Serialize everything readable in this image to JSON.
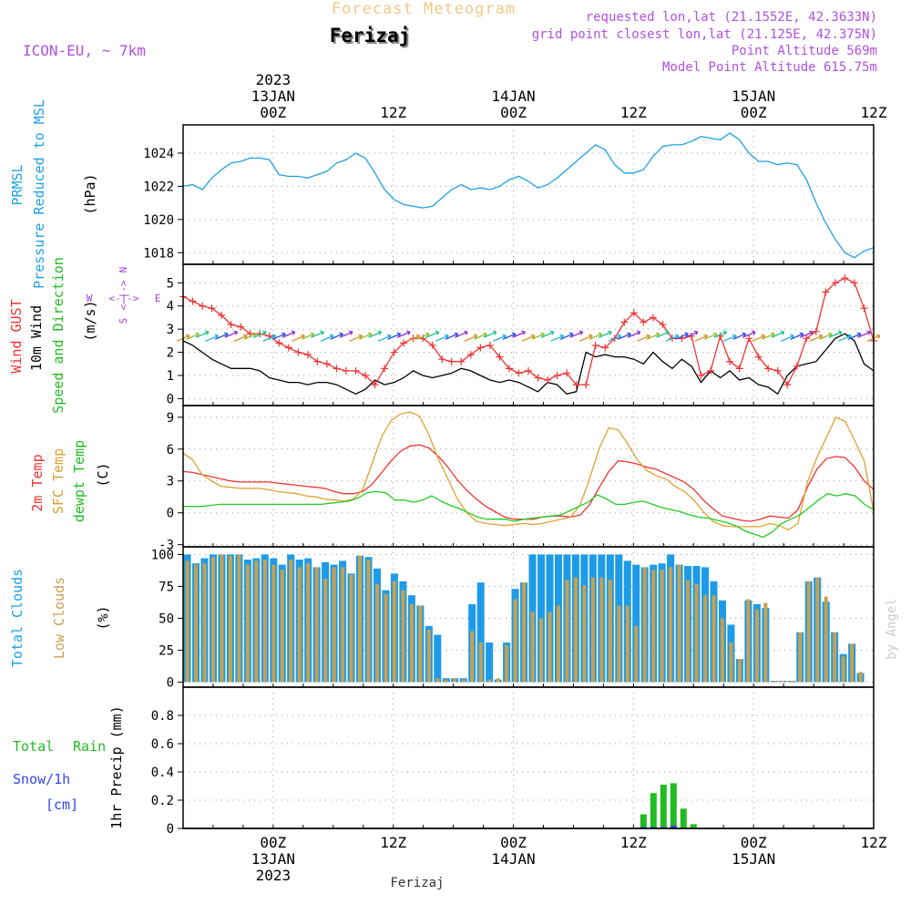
{
  "header": {
    "super_title": "Forecast Meteogram",
    "location": "Ferizaj",
    "model": "ICON-EU, ~ 7km",
    "requested": "requested lon,lat (21.1552E, 42.3633N)",
    "grid_point": "grid point closest lon,lat (21.125E, 42.375N)",
    "point_altitude": "Point Altitude 569m",
    "model_altitude": "Model Point Altitude 615.75m"
  },
  "footer": {
    "location": "Ferizaj",
    "watermark": "by Angel"
  },
  "colors": {
    "pressure": "#1ea0e6",
    "gust": "#ee3333",
    "wind": "#000000",
    "purple": "#a040d0",
    "sfc": "#e0a030",
    "dewpt": "#22cc22",
    "cloud_total": "#1e9be8",
    "cloud_low": "#c8a050",
    "rain": "#22bb22",
    "snow": "#3344ee",
    "title_orange": "#f0c070"
  },
  "chart_data": {
    "type": "meteogram",
    "time_axis": {
      "unit": "hours since 2023-01-12 15Z",
      "range": [
        0,
        69
      ],
      "top_labels": [
        {
          "t": 9,
          "lines": [
            "2023",
            "13JAN",
            "00Z"
          ]
        },
        {
          "t": 21,
          "lines": [
            "12Z"
          ]
        },
        {
          "t": 33,
          "lines": [
            "14JAN",
            "00Z"
          ]
        },
        {
          "t": 45,
          "lines": [
            "12Z"
          ]
        },
        {
          "t": 57,
          "lines": [
            "15JAN",
            "00Z"
          ]
        },
        {
          "t": 69,
          "lines": [
            "12Z"
          ]
        }
      ],
      "bottom_labels": [
        {
          "t": 9,
          "lines": [
            "00Z",
            "13JAN",
            "2023"
          ]
        },
        {
          "t": 21,
          "lines": [
            "12Z"
          ]
        },
        {
          "t": 33,
          "lines": [
            "00Z",
            "14JAN"
          ]
        },
        {
          "t": 45,
          "lines": [
            "12Z"
          ]
        },
        {
          "t": 57,
          "lines": [
            "00Z",
            "15JAN"
          ]
        },
        {
          "t": 69,
          "lines": [
            "12Z"
          ]
        }
      ]
    },
    "pressure": {
      "title": "PRMSL",
      "subtitle": "Pressure Reduced to MSL",
      "unit": "(hPa)",
      "ylim": [
        1017.3,
        1025.7
      ],
      "yticks": [
        1018,
        1020,
        1022,
        1024
      ],
      "values": [
        1022.0,
        1022.1,
        1021.8,
        1022.5,
        1023.0,
        1023.4,
        1023.5,
        1023.7,
        1023.7,
        1023.6,
        1022.7,
        1022.6,
        1022.6,
        1022.5,
        1022.7,
        1022.9,
        1023.4,
        1023.6,
        1024.0,
        1023.7,
        1022.8,
        1021.8,
        1021.2,
        1020.9,
        1020.8,
        1020.7,
        1020.8,
        1021.3,
        1021.8,
        1022.1,
        1021.8,
        1021.9,
        1021.8,
        1022.0,
        1022.4,
        1022.6,
        1022.3,
        1021.9,
        1022.1,
        1022.5,
        1023.0,
        1023.5,
        1024.0,
        1024.5,
        1024.2,
        1023.3,
        1022.8,
        1022.8,
        1023.0,
        1023.8,
        1024.4,
        1024.5,
        1024.5,
        1024.7,
        1025.0,
        1024.9,
        1024.8,
        1025.2,
        1024.8,
        1024.0,
        1023.5,
        1023.5,
        1023.3,
        1023.4,
        1023.3,
        1022.4,
        1021.0,
        1019.8,
        1018.8,
        1018.0,
        1017.7,
        1018.1,
        1018.3
      ]
    },
    "wind": {
      "label_gust": "Wind GUST",
      "label_wind": "10m Wind",
      "label_dir": "Speed and Direction",
      "unit": "(m/s)",
      "compass": {
        "n": "N",
        "s": "S",
        "w": "W",
        "e": "E",
        "arrows": "<-|->"
      },
      "ylim": [
        -0.3,
        5.8
      ],
      "yticks": [
        0,
        1,
        2,
        3,
        4,
        5
      ],
      "gust": [
        4.4,
        4.2,
        4.0,
        3.9,
        3.6,
        3.2,
        3.1,
        2.8,
        2.8,
        2.7,
        2.4,
        2.2,
        2.0,
        1.9,
        1.6,
        1.5,
        1.3,
        1.2,
        1.2,
        1.0,
        0.6,
        1.3,
        2.0,
        2.4,
        2.6,
        2.6,
        2.3,
        1.7,
        1.6,
        1.6,
        1.9,
        2.2,
        2.3,
        1.8,
        1.3,
        1.1,
        1.2,
        0.9,
        0.8,
        1.0,
        1.1,
        0.6,
        0.6,
        2.3,
        2.2,
        2.6,
        3.3,
        3.7,
        3.3,
        3.5,
        3.2,
        2.6,
        2.6,
        2.7,
        1.0,
        1.2,
        2.7,
        1.6,
        1.3,
        2.6,
        1.8,
        1.3,
        1.2,
        0.6,
        1.4,
        2.6,
        2.9,
        4.6,
        5.0,
        5.2,
        5.0,
        3.9,
        2.5
      ],
      "speed": [
        2.5,
        2.3,
        2.0,
        1.7,
        1.5,
        1.3,
        1.3,
        1.3,
        1.2,
        0.9,
        0.8,
        0.7,
        0.7,
        0.6,
        0.7,
        0.7,
        0.6,
        0.4,
        0.2,
        0.4,
        0.8,
        0.6,
        0.7,
        0.9,
        1.2,
        1.0,
        0.9,
        1.0,
        1.1,
        1.3,
        1.2,
        1.0,
        0.8,
        0.7,
        0.8,
        0.7,
        0.5,
        0.3,
        0.7,
        0.6,
        0.2,
        0.3,
        2.0,
        1.8,
        1.9,
        1.8,
        1.8,
        1.7,
        1.5,
        2.0,
        1.6,
        1.3,
        1.7,
        1.4,
        0.7,
        1.2,
        0.9,
        1.2,
        0.8,
        0.9,
        0.6,
        0.5,
        0.2,
        1.0,
        1.4,
        1.5,
        1.6,
        2.1,
        2.6,
        2.8,
        2.5,
        1.5,
        1.2
      ]
    },
    "temperature": {
      "label_2m": "2m Temp",
      "label_sfc": "SFC Temp",
      "label_dew": "dewpt Temp",
      "unit": "(C)",
      "ylim": [
        -3.2,
        10.1
      ],
      "yticks": [
        -3,
        0,
        3,
        6,
        9
      ],
      "t2m": [
        3.9,
        3.8,
        3.6,
        3.4,
        3.2,
        3.0,
        2.9,
        2.9,
        2.9,
        2.9,
        2.8,
        2.7,
        2.6,
        2.5,
        2.4,
        2.3,
        2.0,
        1.8,
        1.8,
        2.0,
        2.7,
        3.8,
        4.9,
        5.8,
        6.3,
        6.4,
        6.1,
        5.3,
        4.3,
        3.1,
        2.1,
        1.3,
        0.6,
        0.1,
        -0.4,
        -0.6,
        -0.6,
        -0.6,
        -0.4,
        -0.3,
        -0.3,
        -0.4,
        -0.2,
        0.8,
        2.4,
        3.9,
        4.9,
        4.8,
        4.6,
        4.3,
        4.1,
        3.7,
        3.3,
        2.9,
        2.2,
        1.2,
        0.4,
        -0.3,
        -0.5,
        -0.7,
        -0.8,
        -0.6,
        -0.3,
        -0.4,
        -0.5,
        0.3,
        2.4,
        4.1,
        5.1,
        5.3,
        5.2,
        4.3,
        3.0,
        2.2
      ],
      "sfc": [
        5.6,
        5.0,
        3.6,
        3.0,
        2.5,
        2.4,
        2.3,
        2.3,
        2.3,
        2.2,
        2.0,
        1.9,
        1.8,
        1.6,
        1.5,
        1.3,
        1.2,
        1.1,
        1.3,
        2.2,
        4.7,
        7.2,
        8.7,
        9.3,
        9.5,
        9.1,
        7.3,
        5.0,
        3.2,
        1.3,
        0.0,
        -0.8,
        -1.0,
        -1.1,
        -1.2,
        -1.1,
        -1.0,
        -1.1,
        -1.0,
        -0.8,
        -0.6,
        -0.4,
        0.8,
        3.3,
        6.1,
        8.0,
        7.8,
        6.5,
        5.0,
        4.0,
        3.5,
        3.2,
        2.5,
        2.0,
        1.2,
        0.1,
        -0.8,
        -1.2,
        -1.3,
        -1.3,
        -1.3,
        -1.3,
        -1.0,
        -1.2,
        -1.6,
        -1.0,
        2.9,
        5.2,
        7.1,
        9.0,
        8.6,
        6.8,
        4.9,
        0.1
      ],
      "dew": [
        0.6,
        0.6,
        0.6,
        0.7,
        0.8,
        0.8,
        0.8,
        0.8,
        0.8,
        0.8,
        0.8,
        0.8,
        0.8,
        0.8,
        0.8,
        0.8,
        0.9,
        1.0,
        1.1,
        1.4,
        1.9,
        2.0,
        1.9,
        1.2,
        1.2,
        1.0,
        1.2,
        1.6,
        1.1,
        0.7,
        0.4,
        0.0,
        -0.4,
        -0.6,
        -0.6,
        -0.6,
        -0.8,
        -0.6,
        -0.5,
        -0.4,
        -0.3,
        -0.2,
        0.2,
        0.6,
        1.0,
        1.7,
        1.3,
        0.8,
        0.8,
        1.0,
        1.1,
        0.8,
        0.5,
        0.3,
        0.1,
        -0.2,
        -0.4,
        -0.5,
        -0.7,
        -0.9,
        -1.2,
        -1.7,
        -2.0,
        -2.3,
        -1.8,
        -1.0,
        -0.6,
        -0.2,
        0.5,
        1.2,
        1.8,
        1.6,
        1.8,
        1.6,
        0.8,
        0.3
      ]
    },
    "clouds": {
      "label_total": "Total Clouds",
      "label_low": "Low Clouds",
      "unit": "(%)",
      "ylim": [
        -4,
        106
      ],
      "yticks": [
        0,
        25,
        50,
        75,
        100
      ],
      "total": [
        100,
        93,
        97,
        100,
        100,
        100,
        100,
        96,
        97,
        100,
        97,
        92,
        100,
        96,
        97,
        90,
        94,
        92,
        95,
        85,
        99,
        98,
        89,
        72,
        85,
        79,
        68,
        60,
        44,
        37,
        3,
        3,
        3,
        61,
        78,
        31,
        2,
        31,
        73,
        78,
        100,
        100,
        100,
        100,
        100,
        100,
        100,
        100,
        100,
        100,
        100,
        95,
        92,
        90,
        92,
        93,
        100,
        92,
        91,
        91,
        90,
        79,
        64,
        45,
        18,
        64,
        61,
        58,
        1,
        1,
        1,
        39,
        79,
        82,
        63,
        39,
        22,
        30,
        7,
        0
      ],
      "low": [
        95,
        92,
        93,
        98,
        100,
        99,
        100,
        92,
        95,
        96,
        92,
        88,
        96,
        90,
        93,
        90,
        81,
        90,
        90,
        84,
        99,
        96,
        77,
        69,
        79,
        72,
        61,
        60,
        41,
        3,
        2,
        3,
        2,
        40,
        31,
        2,
        3,
        29,
        65,
        78,
        55,
        50,
        55,
        60,
        80,
        82,
        76,
        82,
        82,
        80,
        60,
        60,
        44,
        90,
        88,
        88,
        90,
        92,
        80,
        77,
        68,
        68,
        50,
        31,
        18,
        65,
        57,
        62,
        1,
        1,
        1,
        39,
        79,
        82,
        67,
        39,
        20,
        30,
        8,
        0
      ]
    },
    "precip": {
      "label_total": "Total",
      "label_rain": "Rain",
      "label_snow": "Snow/1h",
      "label_cm": "[cm]",
      "unit": "1hr Precip (mm)",
      "ylim": [
        0,
        1.0
      ],
      "yticks": [
        0,
        0.2,
        0.4,
        0.6,
        0.8
      ],
      "rain": [
        {
          "t": 46,
          "v": 0.1
        },
        {
          "t": 47,
          "v": 0.25
        },
        {
          "t": 48,
          "v": 0.31
        },
        {
          "t": 49,
          "v": 0.32
        },
        {
          "t": 50,
          "v": 0.14
        },
        {
          "t": 51,
          "v": 0.03
        }
      ],
      "snow": [
        {
          "t": 46,
          "v": 0.01
        },
        {
          "t": 47,
          "v": 0.01
        },
        {
          "t": 48,
          "v": 0.01
        },
        {
          "t": 49,
          "v": 0.02
        }
      ]
    }
  }
}
